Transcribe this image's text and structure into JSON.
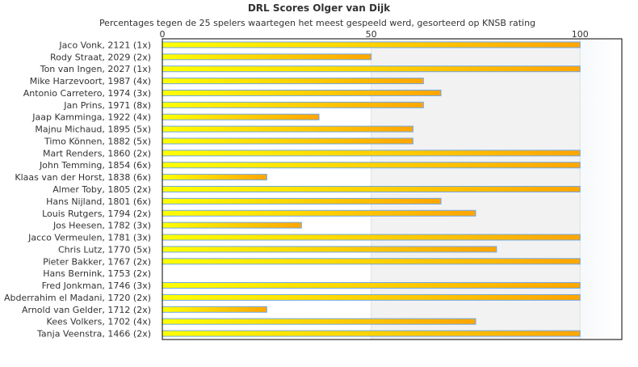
{
  "chart_data": {
    "type": "bar",
    "orientation": "horizontal",
    "title": "DRL Scores Olger van Dijk",
    "subtitle": "Percentages tegen de 25 spelers waartegen het meest gespeeld werd, gesorteerd op KNSB rating",
    "xlim": [
      0,
      110
    ],
    "xticks": [
      0,
      50,
      100
    ],
    "categories": [
      "Jaco Vonk, 2121 (1x)",
      "Rody Straat, 2029 (2x)",
      "Ton van Ingen, 2027 (1x)",
      "Mike Harzevoort, 1987 (4x)",
      "Antonio Carretero, 1974 (3x)",
      "Jan Prins, 1971 (8x)",
      "Jaap Kamminga, 1922 (4x)",
      "Majnu Michaud, 1895 (5x)",
      "Timo Können, 1882 (5x)",
      "Mart Renders, 1860 (2x)",
      "John Temming, 1854 (6x)",
      "Klaas van der Horst, 1838 (6x)",
      "Almer Toby, 1805 (2x)",
      "Hans Nijland, 1801 (6x)",
      "Louis Rutgers, 1794 (2x)",
      "Jos Heesen, 1782 (3x)",
      "Jacco Vermeulen, 1781 (3x)",
      "Chris Lutz, 1770 (5x)",
      "Pieter Bakker, 1767 (2x)",
      "Hans Bernink, 1753 (2x)",
      "Fred Jonkman, 1746 (3x)",
      "Abderrahim el Madani, 1720 (2x)",
      "Arnold van Gelder, 1712 (2x)",
      "Kees Volkers, 1702 (4x)",
      "Tanja Veenstra, 1466 (2x)"
    ],
    "values": [
      100,
      50,
      100,
      62.5,
      66.7,
      62.5,
      37.5,
      60,
      60,
      100,
      100,
      25,
      100,
      66.7,
      75,
      33.3,
      100,
      80,
      100,
      0,
      100,
      100,
      25,
      75,
      100
    ],
    "colors": {
      "bar_start": "#ffff00",
      "bar_end": "#ffa500",
      "bar_border": "#6fa8e8",
      "band_50_100": "#f2f2f2"
    },
    "grid": true
  }
}
